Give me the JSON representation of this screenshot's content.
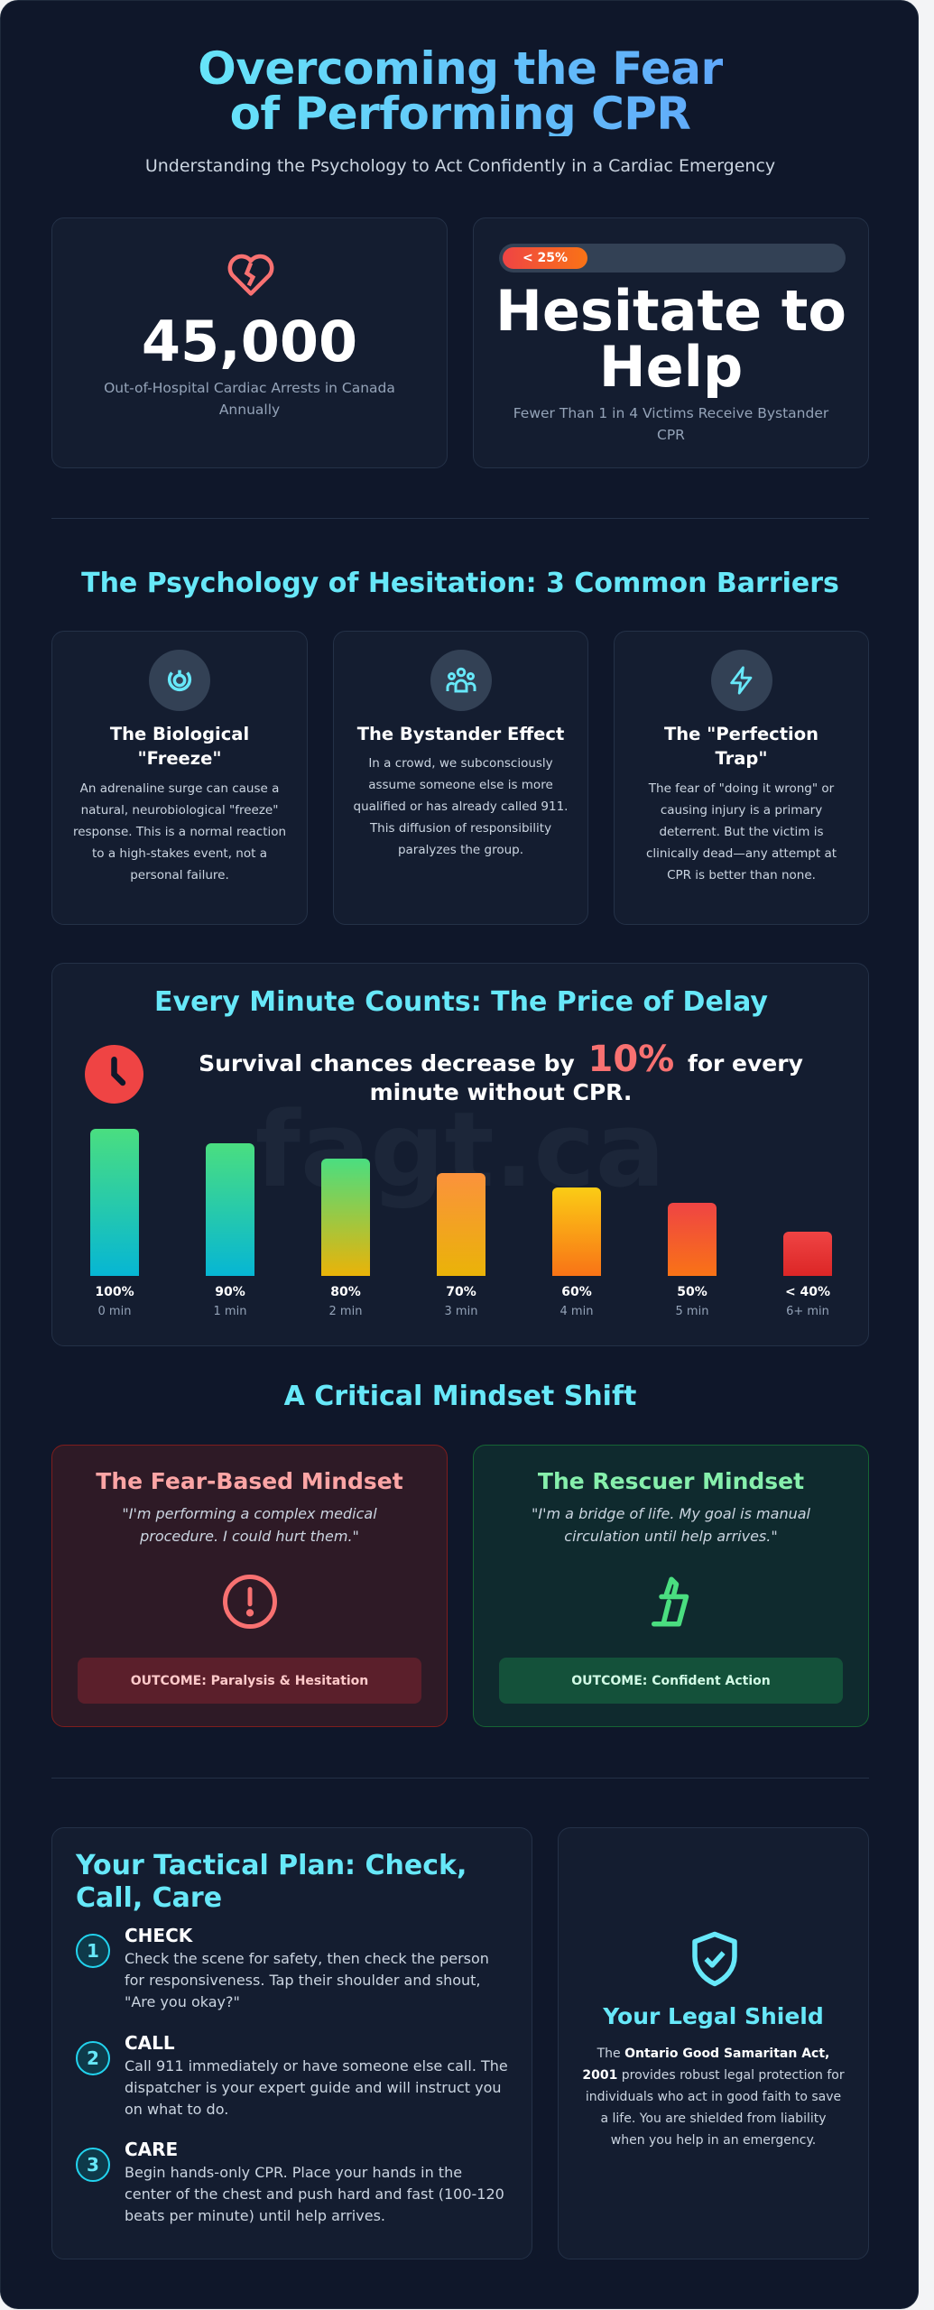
{
  "header": {
    "title": "Overcoming the Fear of Performing CPR",
    "subtitle": "Understanding the Psychology to Act Confidently in a Cardiac Emergency"
  },
  "stats": [
    {
      "icon": "broken-heart-icon",
      "value": "45,000",
      "label": "Out-of-Hospital Cardiac Arrests in Canada Annually"
    },
    {
      "progress_label": "< 25%",
      "progress_percent": 25,
      "value": "Hesitate to Help",
      "label": "Fewer Than 1 in 4 Victims Receive Bystander CPR"
    }
  ],
  "barriers": {
    "heading": "The Psychology of Hesitation: 3 Common Barriers",
    "items": [
      {
        "icon": "freeze-icon",
        "title": "The Biological \"Freeze\"",
        "body": "An adrenaline surge can cause a natural, neurobiological \"freeze\" response. This is a normal reaction to a high-stakes event, not a personal failure."
      },
      {
        "icon": "group-icon",
        "title": "The Bystander Effect",
        "body": "In a crowd, we subconsciously assume someone else is more qualified or has already called 911. This diffusion of responsibility paralyzes the group."
      },
      {
        "icon": "lightning-icon",
        "title": "The \"Perfection Trap\"",
        "body": "The fear of \"doing it wrong\" or causing injury is a primary deterrent. But the victim is clinically dead—any attempt at CPR is better than none."
      }
    ]
  },
  "delay": {
    "heading": "Every Minute Counts: The Price of Delay",
    "text_before": "Survival chances decrease by",
    "highlight": "10%",
    "text_after": "for every minute without CPR.",
    "watermark": "fagt.ca"
  },
  "chart_data": {
    "type": "bar",
    "categories": [
      "0 min",
      "1 min",
      "2 min",
      "3 min",
      "4 min",
      "5 min",
      "6+ min"
    ],
    "value_labels": [
      "100%",
      "90%",
      "80%",
      "70%",
      "60%",
      "50%",
      "< 40%"
    ],
    "values": [
      100,
      90,
      80,
      70,
      60,
      50,
      30
    ],
    "ylim": [
      0,
      100
    ],
    "bar_colors": [
      [
        "#4ade80",
        "#06b6d4"
      ],
      [
        "#4ade80",
        "#06b6d4"
      ],
      [
        "#4ade80",
        "#eab308"
      ],
      [
        "#fb923c",
        "#eab308"
      ],
      [
        "#facc15",
        "#f97316"
      ],
      [
        "#ef4444",
        "#f97316"
      ],
      [
        "#ef4444",
        "#dc2626"
      ]
    ]
  },
  "mindset": {
    "heading": "A Critical Mindset Shift",
    "fear": {
      "title": "The Fear-Based Mindset",
      "quote": "\"I'm performing a complex medical procedure. I could hurt them.\"",
      "icon": "alert-circle-icon",
      "outcome": "OUTCOME: Paralysis & Hesitation",
      "color": "#f87171"
    },
    "rescuer": {
      "title": "The Rescuer Mindset",
      "quote": "\"I'm a bridge of life. My goal is manual circulation until help arrives.\"",
      "icon": "hands-icon",
      "outcome": "OUTCOME: Confident Action",
      "color": "#4ade80"
    }
  },
  "plan": {
    "heading": "Your Tactical Plan: Check, Call, Care",
    "steps": [
      {
        "num": "1",
        "title": "CHECK",
        "body": "Check the scene for safety, then check the person for responsiveness. Tap their shoulder and shout, \"Are you okay?\""
      },
      {
        "num": "2",
        "title": "CALL",
        "body": "Call 911 immediately or have someone else call. The dispatcher is your expert guide and will instruct you on what to do."
      },
      {
        "num": "3",
        "title": "CARE",
        "body": "Begin hands-only CPR. Place your hands in the center of the chest and push hard and fast (100-120 beats per minute) until help arrives."
      }
    ]
  },
  "legal": {
    "icon": "shield-check-icon",
    "title": "Your Legal Shield",
    "prefix": "The ",
    "bold": "Ontario Good Samaritan Act, 2001",
    "suffix": " provides robust legal protection for individuals who act in good faith to save a life. You are shielded from liability when you help in an emergency."
  }
}
